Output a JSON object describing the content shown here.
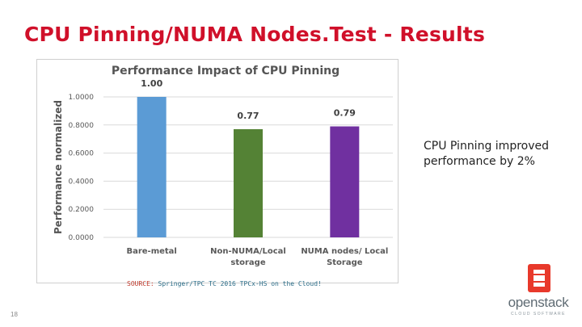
{
  "slide": {
    "title": "CPU Pinning/NUMA Nodes.Test - Results",
    "side_note": "CPU Pinning improved performance by 2%",
    "source_label": "SOURCE:",
    "source_text": " Springer/TPC TC 2016 TPCx-HS on the Cloud!",
    "page_number": "18",
    "logo_word": "openstack",
    "logo_sub": "CLOUD SOFTWARE"
  },
  "colors": {
    "title": "#d0102a",
    "bar_blue": "#5b9bd5",
    "bar_green": "#548235",
    "bar_purple": "#7030a0",
    "logo_red": "#e8392b"
  },
  "chart_data": {
    "type": "bar",
    "title": "Performance Impact of CPU Pinning",
    "ylabel": "Performance normalized",
    "xlabel": "",
    "ylim": [
      0,
      1
    ],
    "yticks": [
      "0.0000",
      "0.2000",
      "0.4000",
      "0.6000",
      "0.8000",
      "1.0000"
    ],
    "categories": [
      [
        "Bare-metal"
      ],
      [
        "Non-NUMA/Local",
        "storage"
      ],
      [
        "NUMA nodes/ Local",
        "Storage"
      ]
    ],
    "values": [
      1.0,
      0.77,
      0.79
    ],
    "value_labels": [
      "1.00",
      "0.77",
      "0.79"
    ],
    "bar_colors": [
      "#5b9bd5",
      "#548235",
      "#7030a0"
    ],
    "grid": true
  }
}
